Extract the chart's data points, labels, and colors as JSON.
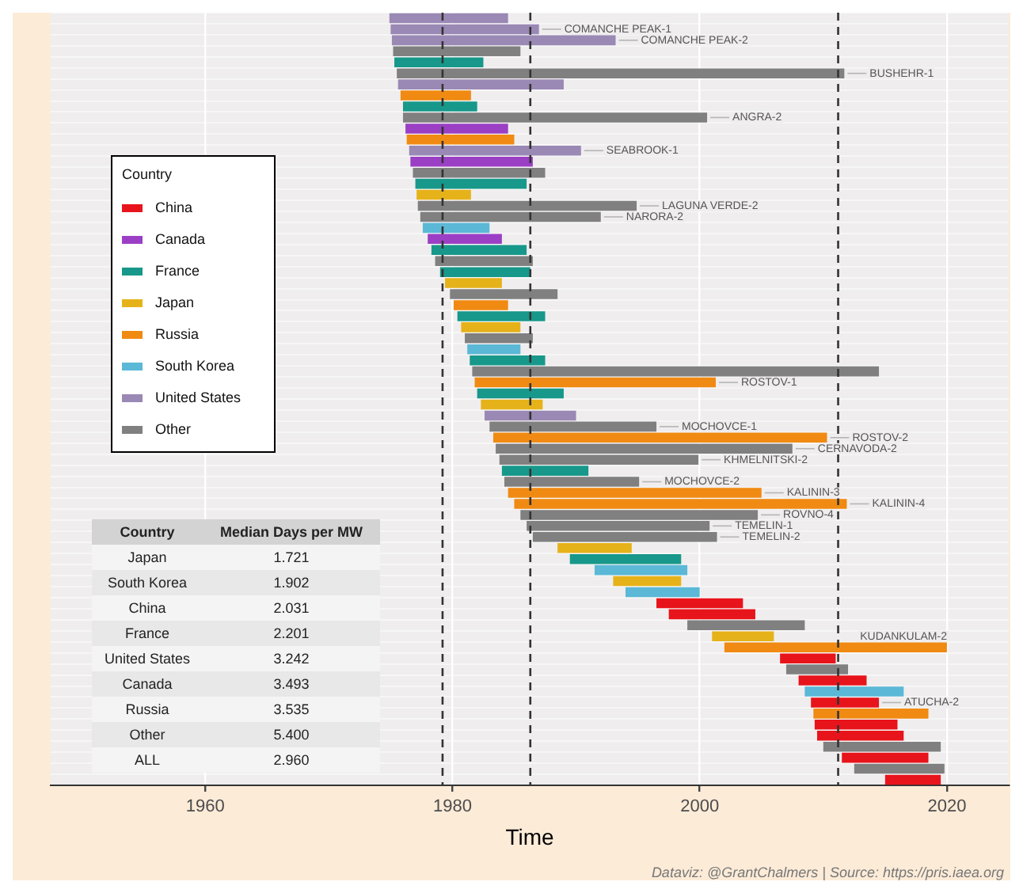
{
  "chart_data": {
    "type": "bar",
    "orientation": "horizontal",
    "xlabel": "Time",
    "categories": [
      null,
      null,
      null,
      null,
      null,
      null,
      null,
      null,
      null,
      null,
      null,
      null,
      null,
      null,
      null,
      null,
      null,
      null,
      null,
      null,
      null,
      null,
      null,
      null,
      null,
      null,
      null,
      null,
      null,
      null,
      null,
      null,
      null,
      null,
      null,
      null,
      null,
      null,
      null,
      null,
      null,
      null,
      null,
      null,
      null,
      null,
      null,
      null,
      null,
      null,
      null,
      null,
      null,
      null,
      null,
      null,
      null,
      null,
      null,
      null,
      null,
      null,
      null,
      null,
      null,
      null,
      null,
      null,
      null,
      null
    ],
    "series": [
      {
        "name": "China",
        "color": "#e8141b",
        "base": [
          null,
          null,
          null,
          null,
          null,
          null,
          null,
          null,
          null,
          null,
          null,
          null,
          null,
          null,
          null,
          null,
          null,
          null,
          null,
          null,
          null,
          null,
          null,
          null,
          null,
          null,
          null,
          null,
          null,
          null,
          null,
          null,
          null,
          null,
          null,
          null,
          null,
          null,
          null,
          null,
          null,
          null,
          null,
          null,
          null,
          null,
          null,
          null,
          null,
          null,
          null,
          null,
          null,
          1996.5,
          1997.5,
          null,
          null,
          null,
          2006.5,
          null,
          2008.0,
          null,
          2009.0,
          null,
          2009.3,
          2009.5,
          null,
          2011.5,
          null,
          2015.0
        ],
        "values": [
          null,
          null,
          null,
          null,
          null,
          null,
          null,
          null,
          null,
          null,
          null,
          null,
          null,
          null,
          null,
          null,
          null,
          null,
          null,
          null,
          null,
          null,
          null,
          null,
          null,
          null,
          null,
          null,
          null,
          null,
          null,
          null,
          null,
          null,
          null,
          null,
          null,
          null,
          null,
          null,
          null,
          null,
          null,
          null,
          null,
          null,
          null,
          null,
          null,
          null,
          null,
          null,
          null,
          7.0,
          7.0,
          null,
          null,
          null,
          4.5,
          null,
          5.5,
          null,
          5.5,
          null,
          6.7,
          7.0,
          null,
          7.0,
          null,
          4.5
        ]
      },
      {
        "name": "Canada",
        "color": "#9b3fc5",
        "base": [
          null,
          null,
          null,
          null,
          null,
          null,
          null,
          null,
          null,
          null,
          1976.2,
          null,
          null,
          1976.6,
          null,
          null,
          null,
          null,
          null,
          null,
          1978.0,
          null,
          null,
          null,
          null,
          null,
          null,
          null,
          null,
          null,
          null,
          null,
          null,
          null,
          null,
          null,
          null,
          null,
          null,
          null,
          null,
          null,
          null,
          null,
          null,
          null,
          null,
          null,
          null,
          null,
          null,
          null,
          null,
          null,
          null,
          null,
          null,
          null,
          null,
          null,
          null,
          null,
          null,
          null,
          null,
          null,
          null,
          null,
          null,
          null
        ],
        "values": [
          null,
          null,
          null,
          null,
          null,
          null,
          null,
          null,
          null,
          null,
          8.3,
          null,
          null,
          9.9,
          null,
          null,
          null,
          null,
          null,
          null,
          6.0,
          null,
          null,
          null,
          null,
          null,
          null,
          null,
          null,
          null,
          null,
          null,
          null,
          null,
          null,
          null,
          null,
          null,
          null,
          null,
          null,
          null,
          null,
          null,
          null,
          null,
          null,
          null,
          null,
          null,
          null,
          null,
          null,
          null,
          null,
          null,
          null,
          null,
          null,
          null,
          null,
          null,
          null,
          null,
          null,
          null,
          null,
          null,
          null,
          null
        ]
      },
      {
        "name": "France",
        "color": "#17988a",
        "base": [
          null,
          null,
          null,
          null,
          1975.3,
          null,
          null,
          null,
          1976.0,
          null,
          null,
          null,
          null,
          null,
          null,
          1977.0,
          null,
          null,
          null,
          null,
          null,
          1978.3,
          null,
          1979.0,
          null,
          null,
          null,
          1980.4,
          null,
          null,
          null,
          1981.4,
          null,
          null,
          1982.0,
          null,
          null,
          null,
          null,
          null,
          null,
          1984.0,
          null,
          null,
          null,
          null,
          null,
          null,
          null,
          1989.5,
          null,
          null,
          null,
          null,
          null,
          null,
          null,
          null,
          null,
          null,
          null,
          null,
          null,
          null,
          null,
          null,
          null,
          null,
          null,
          null
        ],
        "values": [
          null,
          null,
          null,
          null,
          7.2,
          null,
          null,
          null,
          6.0,
          null,
          null,
          null,
          null,
          null,
          null,
          9.0,
          null,
          null,
          null,
          null,
          null,
          7.7,
          null,
          7.3,
          null,
          null,
          null,
          7.1,
          null,
          null,
          null,
          6.1,
          null,
          null,
          7.0,
          null,
          null,
          null,
          null,
          null,
          null,
          7.0,
          null,
          null,
          null,
          null,
          null,
          null,
          null,
          9.0,
          null,
          null,
          null,
          null,
          null,
          null,
          null,
          null,
          null,
          null,
          null,
          null,
          null,
          null,
          null,
          null,
          null,
          null,
          null,
          null
        ]
      },
      {
        "name": "Japan",
        "color": "#e6b21a",
        "base": [
          null,
          null,
          null,
          null,
          null,
          null,
          null,
          null,
          null,
          null,
          null,
          null,
          null,
          null,
          null,
          null,
          1977.1,
          null,
          null,
          null,
          null,
          null,
          null,
          null,
          1979.4,
          null,
          null,
          null,
          1980.7,
          null,
          null,
          null,
          null,
          null,
          null,
          1982.3,
          null,
          null,
          null,
          null,
          null,
          null,
          null,
          null,
          null,
          null,
          null,
          null,
          1988.5,
          null,
          null,
          1993.0,
          null,
          null,
          null,
          null,
          2001.0,
          null,
          null,
          null,
          null,
          null,
          null,
          null,
          null,
          null,
          null,
          null,
          null,
          null
        ],
        "values": [
          null,
          null,
          null,
          null,
          null,
          null,
          null,
          null,
          null,
          null,
          null,
          null,
          null,
          null,
          null,
          null,
          4.4,
          null,
          null,
          null,
          null,
          null,
          null,
          null,
          4.6,
          null,
          null,
          null,
          4.8,
          null,
          null,
          null,
          null,
          null,
          null,
          5.0,
          null,
          null,
          null,
          null,
          null,
          null,
          null,
          null,
          null,
          null,
          null,
          null,
          6.0,
          null,
          null,
          5.5,
          null,
          null,
          null,
          null,
          5.0,
          null,
          null,
          null,
          null,
          null,
          null,
          null,
          null,
          null,
          null,
          null,
          null,
          null
        ]
      },
      {
        "name": "Russia",
        "color": "#f08a12",
        "base": [
          null,
          null,
          null,
          null,
          null,
          null,
          null,
          1975.8,
          null,
          null,
          null,
          1976.3,
          null,
          null,
          null,
          null,
          null,
          null,
          null,
          null,
          null,
          null,
          null,
          null,
          null,
          null,
          1980.1,
          null,
          null,
          null,
          null,
          null,
          null,
          1981.8,
          null,
          null,
          null,
          null,
          1983.3,
          null,
          null,
          null,
          null,
          1984.5,
          1985.0,
          null,
          null,
          null,
          null,
          null,
          null,
          null,
          null,
          null,
          null,
          null,
          null,
          2002.0,
          null,
          null,
          null,
          null,
          null,
          2009.2,
          null,
          null,
          null,
          null,
          null,
          null
        ],
        "values": [
          null,
          null,
          null,
          null,
          null,
          null,
          null,
          5.7,
          null,
          null,
          null,
          8.7,
          null,
          null,
          null,
          null,
          null,
          null,
          null,
          null,
          null,
          null,
          null,
          null,
          null,
          null,
          4.4,
          null,
          null,
          null,
          null,
          null,
          null,
          19.5,
          null,
          null,
          null,
          null,
          27.0,
          null,
          null,
          null,
          null,
          20.5,
          26.9,
          null,
          null,
          null,
          null,
          null,
          null,
          null,
          null,
          null,
          null,
          null,
          null,
          18.0,
          null,
          null,
          null,
          null,
          null,
          9.3,
          null,
          null,
          null,
          null,
          null,
          null
        ]
      },
      {
        "name": "South Korea",
        "color": "#5bb8d6",
        "base": [
          null,
          null,
          null,
          null,
          null,
          null,
          null,
          null,
          null,
          null,
          null,
          null,
          null,
          null,
          null,
          null,
          null,
          null,
          null,
          1977.6,
          null,
          null,
          null,
          null,
          null,
          null,
          null,
          null,
          null,
          null,
          1981.2,
          null,
          null,
          null,
          null,
          null,
          null,
          null,
          null,
          null,
          null,
          null,
          null,
          null,
          null,
          null,
          null,
          null,
          null,
          null,
          1991.5,
          null,
          1994.0,
          null,
          null,
          null,
          null,
          null,
          null,
          null,
          null,
          2008.5,
          null,
          null,
          null,
          null,
          null,
          null,
          null,
          null
        ],
        "values": [
          null,
          null,
          null,
          null,
          null,
          null,
          null,
          null,
          null,
          null,
          null,
          null,
          null,
          null,
          null,
          null,
          null,
          null,
          null,
          5.4,
          null,
          null,
          null,
          null,
          null,
          null,
          null,
          null,
          null,
          null,
          4.3,
          null,
          null,
          null,
          null,
          null,
          null,
          null,
          null,
          null,
          null,
          null,
          null,
          null,
          null,
          null,
          null,
          null,
          null,
          null,
          7.5,
          null,
          6.0,
          null,
          null,
          null,
          null,
          null,
          null,
          null,
          null,
          8.0,
          null,
          null,
          null,
          null,
          null,
          null,
          null,
          null
        ]
      },
      {
        "name": "United States",
        "color": "#9a88b5",
        "base": [
          1974.9,
          1975.0,
          1975.1,
          null,
          null,
          null,
          1975.6,
          null,
          null,
          null,
          null,
          null,
          1976.5,
          null,
          null,
          null,
          null,
          null,
          null,
          null,
          null,
          null,
          null,
          null,
          null,
          null,
          null,
          null,
          null,
          null,
          null,
          null,
          null,
          null,
          null,
          null,
          1982.6,
          null,
          null,
          null,
          null,
          null,
          null,
          null,
          null,
          null,
          null,
          null,
          null,
          null,
          null,
          null,
          null,
          null,
          null,
          null,
          null,
          null,
          null,
          null,
          null,
          null,
          null,
          null,
          null,
          null,
          null,
          null,
          null,
          null
        ],
        "values": [
          9.6,
          12.0,
          18.1,
          null,
          null,
          null,
          13.4,
          null,
          null,
          null,
          null,
          null,
          13.9,
          null,
          null,
          null,
          null,
          null,
          null,
          null,
          null,
          null,
          null,
          null,
          null,
          null,
          null,
          null,
          null,
          null,
          null,
          null,
          null,
          null,
          null,
          null,
          7.4,
          null,
          null,
          null,
          null,
          null,
          null,
          null,
          null,
          null,
          null,
          null,
          null,
          null,
          null,
          null,
          null,
          null,
          null,
          null,
          null,
          null,
          null,
          null,
          null,
          null,
          null,
          null,
          null,
          null,
          null,
          null,
          null,
          null
        ]
      },
      {
        "name": "Other",
        "color": "#808080",
        "base": [
          null,
          null,
          null,
          1975.2,
          null,
          1975.5,
          null,
          null,
          null,
          1976.0,
          null,
          null,
          null,
          null,
          1976.8,
          null,
          null,
          1977.2,
          1977.4,
          null,
          null,
          null,
          1978.6,
          null,
          null,
          1979.8,
          null,
          null,
          null,
          1981.0,
          null,
          null,
          1981.6,
          null,
          null,
          null,
          null,
          1983.0,
          null,
          1983.5,
          1983.8,
          null,
          1984.2,
          null,
          null,
          1985.5,
          1986.0,
          1986.5,
          null,
          null,
          null,
          null,
          null,
          null,
          null,
          1999.0,
          null,
          null,
          null,
          2007.0,
          null,
          null,
          null,
          null,
          null,
          null,
          2010.0,
          null,
          2012.5,
          null
        ],
        "values": [
          null,
          null,
          null,
          10.3,
          null,
          36.2,
          null,
          null,
          null,
          24.6,
          null,
          null,
          null,
          null,
          10.7,
          null,
          null,
          17.7,
          14.6,
          null,
          null,
          null,
          7.9,
          null,
          null,
          8.7,
          null,
          null,
          null,
          5.5,
          null,
          null,
          32.9,
          null,
          null,
          null,
          null,
          13.5,
          null,
          24.0,
          16.1,
          null,
          10.9,
          null,
          null,
          19.2,
          14.8,
          14.9,
          null,
          null,
          null,
          null,
          null,
          null,
          null,
          9.5,
          null,
          null,
          null,
          5.0,
          null,
          null,
          null,
          null,
          null,
          null,
          9.5,
          null,
          7.3,
          null
        ]
      }
    ],
    "xlim": [
      1947.5,
      2025
    ],
    "xticks": [
      1960,
      1980,
      2000,
      2020
    ],
    "grid": true,
    "tick_labels": "x",
    "legend": "top left",
    "legend_title": "Country",
    "ref_lines": [
      {
        "axis": "x",
        "value": 1979.2,
        "color": "#333333",
        "line_style": "dashed"
      },
      {
        "axis": "x",
        "value": 1986.3,
        "color": "#333333",
        "line_style": "dashed"
      },
      {
        "axis": "x",
        "value": 2011.2,
        "color": "#333333",
        "line_style": "dashed"
      }
    ],
    "annotations": [
      {
        "text": "COMANCHE PEAK-1",
        "x": 1987
      },
      {
        "text": "COMANCHE PEAK-2",
        "x": 1993.2
      },
      {
        "text": "BUSHEHR-1",
        "x": 2011.7
      },
      {
        "text": "ANGRA-2",
        "x": 2000.6
      },
      {
        "text": "SEABROOK-1",
        "x": 1990.4
      },
      {
        "text": "LAGUNA VERDE-2",
        "x": 1994.9
      },
      {
        "text": "NARORA-2",
        "x": 1992
      },
      {
        "text": "ATUCHA-2",
        "x": 2014.5
      },
      {
        "text": "ROSTOV-1",
        "x": 2001.3
      },
      {
        "text": "MOCHOVCE-1",
        "x": 1996.5
      },
      {
        "text": "ROSTOV-2",
        "x": 2010.3
      },
      {
        "text": "CERNAVODA-2",
        "x": 2007.5
      },
      {
        "text": "KHMELNITSKI-2",
        "x": 1999.9
      },
      {
        "text": "MOCHOVCE-2",
        "x": 1995.1
      },
      {
        "text": "KALININ-3",
        "x": 2005
      },
      {
        "text": "KALININ-4",
        "x": 2011.9
      },
      {
        "text": "ROVNO-4",
        "x": 2004.7
      },
      {
        "text": "TEMELIN-1",
        "x": 2000.8
      },
      {
        "text": "TEMELIN-2",
        "x": 2001.4
      },
      {
        "text": "KUDANKULAM-2",
        "x": 2020
      },
      "Country",
      "Median Days per MW",
      "Japan",
      "1.721",
      "South Korea",
      "1.902",
      "China",
      "2.031",
      "France",
      "2.201",
      "United States",
      "3.242",
      "Canada",
      "3.493",
      "Russia",
      "3.535",
      "Other",
      "5.400",
      "ALL",
      "2.960",
      "Dataviz: @GrantChalmers | Source: https://pris.iaea.org"
    ]
  }
}
